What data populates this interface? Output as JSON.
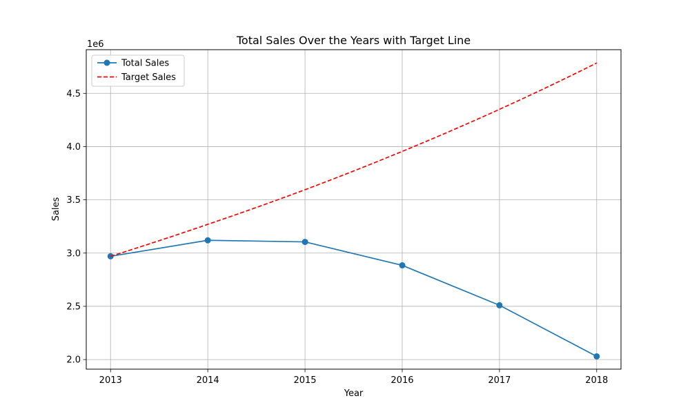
{
  "chart_data": {
    "type": "line",
    "title": "Total Sales Over the Years with Target Line",
    "xlabel": "Year",
    "ylabel": "Sales",
    "y_offset_label": "1e6",
    "x": [
      2013,
      2014,
      2015,
      2016,
      2017,
      2018
    ],
    "xlim": [
      2012.75,
      2018.25
    ],
    "ylim": [
      1.91,
      4.91
    ],
    "y_ticks": [
      2.0,
      2.5,
      3.0,
      3.5,
      4.0,
      4.5
    ],
    "y_tick_labels": [
      "2.0",
      "2.5",
      "3.0",
      "3.5",
      "4.0",
      "4.5"
    ],
    "x_tick_labels": [
      "2013",
      "2014",
      "2015",
      "2016",
      "2017",
      "2018"
    ],
    "grid": true,
    "legend_position": "upper-left",
    "series": [
      {
        "name": "Total Sales",
        "values": [
          2.97,
          3.12,
          3.105,
          2.885,
          2.51,
          2.03
        ],
        "color": "#1f77b4",
        "style": "solid",
        "marker": "circle"
      },
      {
        "name": "Target Sales",
        "values": [
          2.97,
          3.27,
          3.595,
          3.955,
          4.35,
          4.785
        ],
        "color": "#ff0000",
        "style": "dashed",
        "marker": "none",
        "interpolate": "geometric"
      }
    ]
  }
}
